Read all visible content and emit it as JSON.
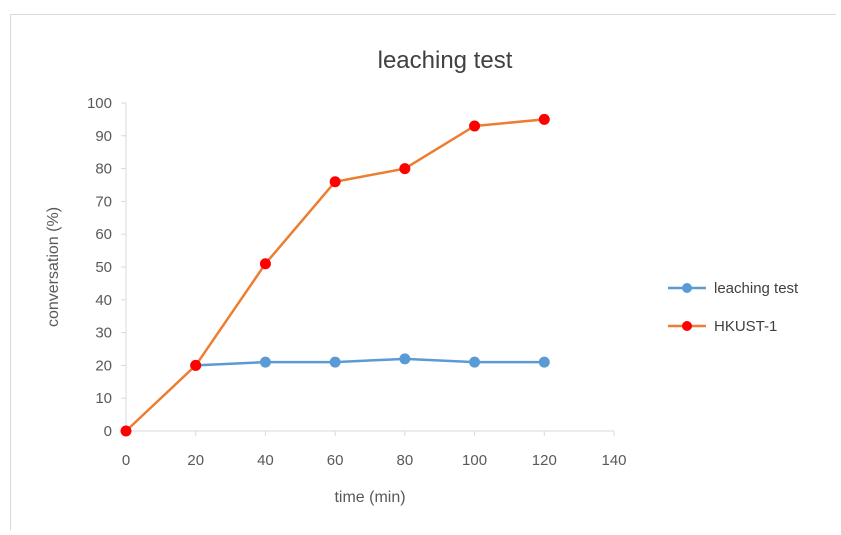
{
  "chart_data": {
    "type": "line",
    "title": "leaching test",
    "xlabel": "time (min)",
    "ylabel": "conversation (%)",
    "xlim": [
      0,
      140
    ],
    "ylim": [
      0,
      100
    ],
    "xticks": [
      0,
      20,
      40,
      60,
      80,
      100,
      120,
      140
    ],
    "yticks": [
      0,
      10,
      20,
      30,
      40,
      50,
      60,
      70,
      80,
      90,
      100
    ],
    "grid": false,
    "legend_position": "right",
    "series": [
      {
        "name": "leaching test",
        "color": "#5b9bd5",
        "x": [
          20,
          40,
          60,
          80,
          100,
          120
        ],
        "y": [
          20,
          21,
          21,
          22,
          21,
          21
        ]
      },
      {
        "name": "HKUST-1",
        "color": "#ed7d31",
        "marker_color": "#ff0000",
        "x": [
          0,
          20,
          40,
          60,
          80,
          100,
          120
        ],
        "y": [
          0,
          20,
          51,
          76,
          80,
          93,
          95
        ]
      }
    ]
  }
}
